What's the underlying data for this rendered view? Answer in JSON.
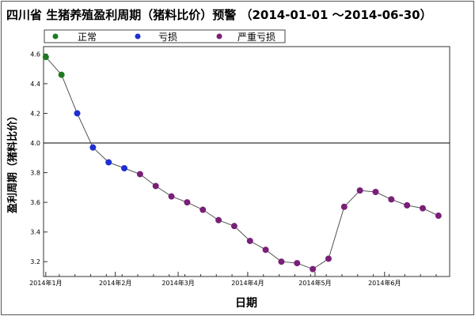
{
  "chart_data": {
    "type": "line",
    "title": "四川省 生猪养殖盈利周期（猪料比价）预警 （2014-01-01 ～2014-06-30）",
    "xlabel": "日期",
    "ylabel": "盈利周期（猪料比价）",
    "ylim": [
      3.1,
      4.65
    ],
    "yticks": [
      "3.2",
      "3.4",
      "3.6",
      "3.8",
      "4.0",
      "4.2",
      "4.4",
      "4.6"
    ],
    "xlim": [
      "2013-12-31",
      "2014-06-30"
    ],
    "xticks": [
      {
        "date": "2014-01-01",
        "label": "2014年1月"
      },
      {
        "date": "2014-02-01",
        "label": "2014年2月"
      },
      {
        "date": "2014-03-01",
        "label": "2014年3月"
      },
      {
        "date": "2014-04-01",
        "label": "2014年4月"
      },
      {
        "date": "2014-05-01",
        "label": "2014年5月"
      },
      {
        "date": "2014-06-01",
        "label": "2014年6月"
      }
    ],
    "reference_line": 4.0,
    "grid": false,
    "legend_position": "top",
    "legend": [
      {
        "key": "normal",
        "label": "正常",
        "color": "#1f7a1f"
      },
      {
        "key": "loss",
        "label": "亏损",
        "color": "#1f2fd0"
      },
      {
        "key": "severe",
        "label": "严重亏损",
        "color": "#7a1f78"
      }
    ],
    "points": [
      {
        "x": "2014-01-01",
        "y": 4.58,
        "status": "normal"
      },
      {
        "x": "2014-01-08",
        "y": 4.46,
        "status": "normal"
      },
      {
        "x": "2014-01-15",
        "y": 4.2,
        "status": "loss"
      },
      {
        "x": "2014-01-22",
        "y": 3.97,
        "status": "loss"
      },
      {
        "x": "2014-01-29",
        "y": 3.87,
        "status": "loss"
      },
      {
        "x": "2014-02-05",
        "y": 3.83,
        "status": "loss"
      },
      {
        "x": "2014-02-12",
        "y": 3.79,
        "status": "severe"
      },
      {
        "x": "2014-02-19",
        "y": 3.71,
        "status": "severe"
      },
      {
        "x": "2014-02-26",
        "y": 3.64,
        "status": "severe"
      },
      {
        "x": "2014-03-05",
        "y": 3.6,
        "status": "severe"
      },
      {
        "x": "2014-03-12",
        "y": 3.55,
        "status": "severe"
      },
      {
        "x": "2014-03-19",
        "y": 3.48,
        "status": "severe"
      },
      {
        "x": "2014-03-26",
        "y": 3.44,
        "status": "severe"
      },
      {
        "x": "2014-04-02",
        "y": 3.34,
        "status": "severe"
      },
      {
        "x": "2014-04-09",
        "y": 3.28,
        "status": "severe"
      },
      {
        "x": "2014-04-16",
        "y": 3.2,
        "status": "severe"
      },
      {
        "x": "2014-04-23",
        "y": 3.19,
        "status": "severe"
      },
      {
        "x": "2014-04-30",
        "y": 3.15,
        "status": "severe"
      },
      {
        "x": "2014-05-07",
        "y": 3.22,
        "status": "severe"
      },
      {
        "x": "2014-05-14",
        "y": 3.57,
        "status": "severe"
      },
      {
        "x": "2014-05-21",
        "y": 3.68,
        "status": "severe"
      },
      {
        "x": "2014-05-28",
        "y": 3.67,
        "status": "severe"
      },
      {
        "x": "2014-06-04",
        "y": 3.62,
        "status": "severe"
      },
      {
        "x": "2014-06-11",
        "y": 3.58,
        "status": "severe"
      },
      {
        "x": "2014-06-18",
        "y": 3.56,
        "status": "severe"
      },
      {
        "x": "2014-06-25",
        "y": 3.51,
        "status": "severe"
      }
    ]
  }
}
